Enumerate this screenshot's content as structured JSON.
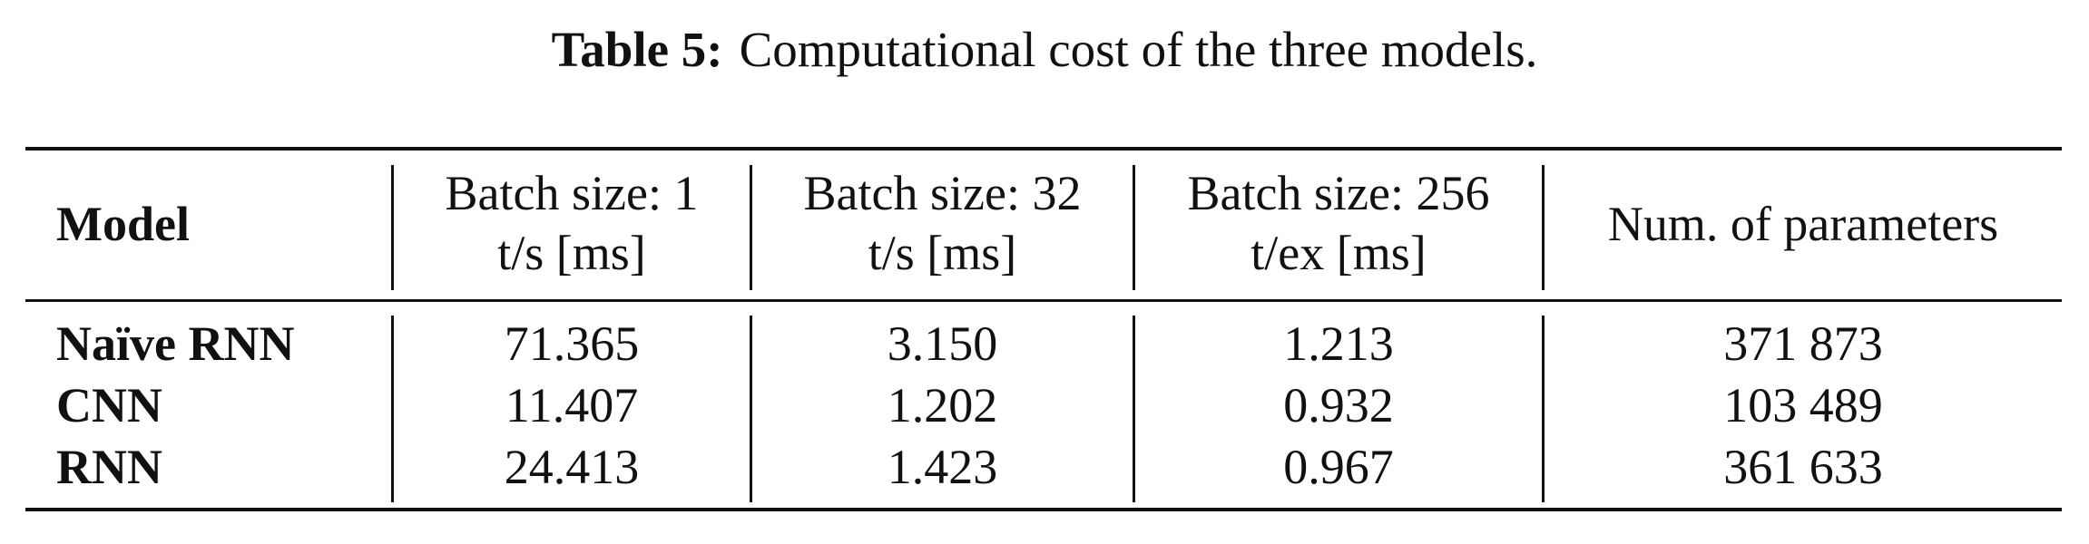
{
  "caption": {
    "label": "Table 5:",
    "text": "Computational cost of the three models."
  },
  "table": {
    "headers": {
      "model": "Model",
      "batch1": {
        "line1": "Batch size: 1",
        "line2": "t/s [ms]"
      },
      "batch32": {
        "line1": "Batch size: 32",
        "line2": "t/s [ms]"
      },
      "batch256": {
        "line1": "Batch size: 256",
        "line2": "t/ex [ms]"
      },
      "params": "Num. of parameters"
    },
    "rows": [
      {
        "model": "Naïve RNN",
        "batch1": "71.365",
        "batch32": "3.150",
        "batch256": "1.213",
        "params": "371 873"
      },
      {
        "model": "CNN",
        "batch1": "11.407",
        "batch32": "1.202",
        "batch256": "0.932",
        "params": "103 489"
      },
      {
        "model": "RNN",
        "batch1": "24.413",
        "batch32": "1.423",
        "batch256": "0.967",
        "params": "361 633"
      }
    ]
  }
}
